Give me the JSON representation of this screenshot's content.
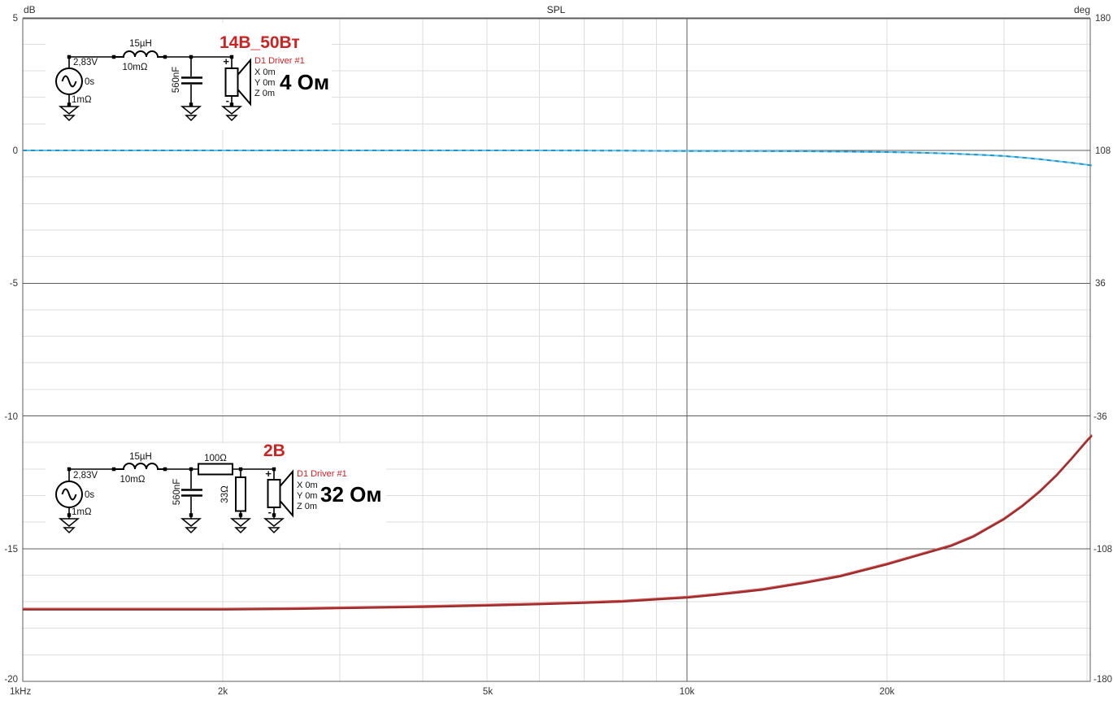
{
  "window": {
    "title": "SPL",
    "left_unit": "dB",
    "right_unit": "deg"
  },
  "chart_data": {
    "type": "line",
    "title": "SPL",
    "x_axis": {
      "scale": "log",
      "unit": "Hz",
      "range_hz": [
        1000,
        40700
      ],
      "tick_labels": [
        "1kHz",
        "2k",
        "5k",
        "10k",
        "20k"
      ],
      "tick_hz": [
        1000,
        2000,
        5000,
        10000,
        20000
      ],
      "minor_gridlines_khz": [
        2,
        3,
        4,
        5,
        6,
        7,
        8,
        9,
        20,
        30,
        40
      ],
      "major_gridlines_khz": [
        10
      ]
    },
    "y_axis_left": {
      "unit": "dB",
      "range": [
        -20,
        5
      ],
      "minor_step": 1,
      "tick_labels": [
        "5",
        "0",
        "-5",
        "-10",
        "-15",
        "-20"
      ],
      "tick_values": [
        5,
        0,
        -5,
        -10,
        -15,
        -20
      ]
    },
    "y_axis_right": {
      "unit": "deg",
      "range": [
        -180,
        180
      ],
      "tick_labels": [
        "180",
        "108",
        "36",
        "-36",
        "-108",
        "-180"
      ],
      "tick_values": [
        180,
        108,
        36,
        -36,
        -108,
        -180
      ]
    },
    "grid": {
      "minor_color": "#dedede",
      "major_color": "#5c5c5c"
    },
    "series": [
      {
        "id": "driver-4ohm",
        "name": "14В_50Вт — 4 Ом",
        "style": "dashed",
        "color": "#2f8fbe",
        "color_alt": "#55c6f0",
        "x_khz": [
          1,
          1.5,
          2,
          3,
          4,
          5,
          6,
          8,
          10,
          12,
          15,
          18,
          20,
          22,
          25,
          28,
          30,
          32,
          34,
          36,
          38,
          40,
          40.7
        ],
        "y_db": [
          0,
          0,
          0,
          0,
          0,
          0,
          0,
          -0.01,
          -0.02,
          -0.02,
          -0.03,
          -0.05,
          -0.06,
          -0.08,
          -0.12,
          -0.17,
          -0.21,
          -0.27,
          -0.33,
          -0.4,
          -0.47,
          -0.54,
          -0.57
        ]
      },
      {
        "id": "driver-32ohm",
        "name": "2В — 32 Ом",
        "style": "solid",
        "color": "#9e2b2b",
        "color_alt": "#cc5555",
        "x_khz": [
          1,
          1.5,
          2,
          2.5,
          3,
          4,
          5,
          6,
          7,
          8,
          9,
          10,
          11,
          12,
          13,
          15,
          17,
          20,
          22,
          25,
          27,
          30,
          32,
          34,
          36,
          38,
          40,
          40.7
        ],
        "y_db": [
          -17.3,
          -17.3,
          -17.3,
          -17.28,
          -17.25,
          -17.2,
          -17.15,
          -17.1,
          -17.05,
          -17.0,
          -16.92,
          -16.85,
          -16.75,
          -16.65,
          -16.55,
          -16.3,
          -16.05,
          -15.6,
          -15.3,
          -14.9,
          -14.55,
          -13.9,
          -13.4,
          -12.85,
          -12.25,
          -11.6,
          -10.95,
          -10.75
        ]
      }
    ]
  },
  "circuit_top": {
    "title": "14В_50Вт",
    "source": {
      "voltage": "2,83V",
      "delay": "0s",
      "resistance": "1mΩ"
    },
    "inductor": {
      "value": "15µH",
      "resistance": "10mΩ"
    },
    "capacitor": {
      "value": "560nF"
    },
    "driver": {
      "name": "D1 Driver #1",
      "x": "X 0m",
      "y": "Y 0m",
      "z": "Z 0m",
      "impedance": "4 Ом",
      "plus": "+",
      "minus": "-"
    }
  },
  "circuit_bottom": {
    "title": "2В",
    "source": {
      "voltage": "2,83V",
      "delay": "0s",
      "resistance": "1mΩ"
    },
    "inductor": {
      "value": "15µH",
      "resistance": "10mΩ"
    },
    "capacitor": {
      "value": "560nF"
    },
    "series_resistor": {
      "value": "100Ω"
    },
    "shunt_resistor": {
      "value": "33Ω"
    },
    "driver": {
      "name": "D1 Driver #1",
      "x": "X 0m",
      "y": "Y 0m",
      "z": "Z 0m",
      "impedance": "32 Ом",
      "plus": "+",
      "minus": "-"
    }
  }
}
